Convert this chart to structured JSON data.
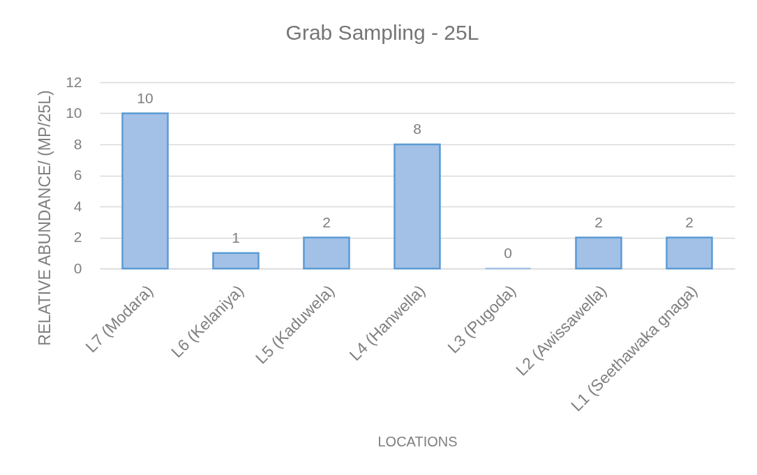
{
  "chart_data": {
    "type": "bar",
    "title": "Grab Sampling - 25L",
    "xlabel": "LOCATIONS",
    "ylabel": "RELATIVE ABUNDANCE/ (MP/25L)",
    "categories": [
      "L7 (Modara)",
      "L6 (Kelaniya)",
      "L5 (Kaduwela)",
      "L4 (Hanwella)",
      "L3 (Pugoda)",
      "L2 (Awissawella)",
      "L1 (Seethawaka gnaga)"
    ],
    "values": [
      10,
      1,
      2,
      8,
      0,
      2,
      2
    ],
    "color": "#a3c1e6",
    "ylim": [
      0,
      12
    ],
    "yticks": [
      0,
      2,
      4,
      6,
      8,
      10,
      12
    ],
    "grid": "y",
    "data_labels": true
  }
}
